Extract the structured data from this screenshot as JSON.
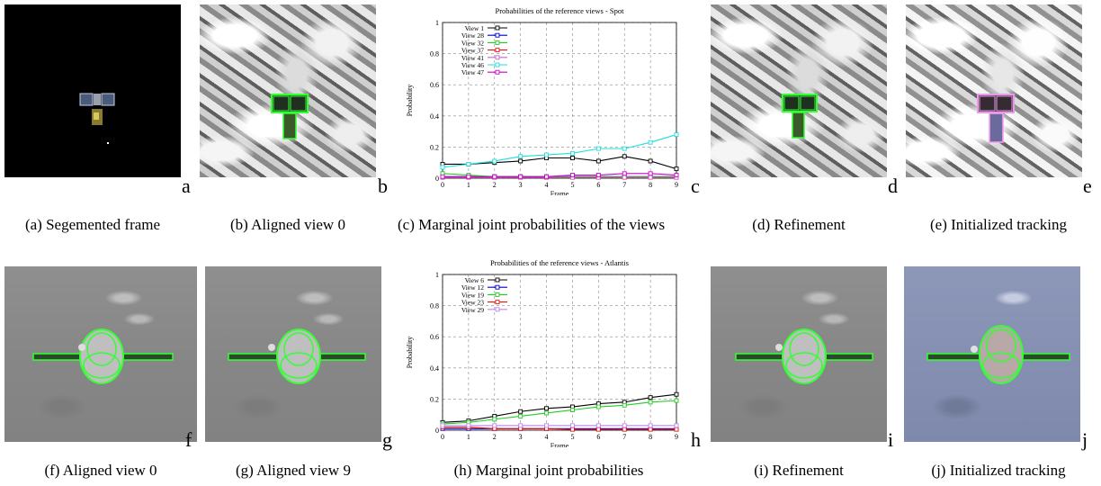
{
  "captions": {
    "a": "(a) Segemented frame",
    "b": "(b) Aligned view 0",
    "c": "(c) Marginal joint probabilities of the views",
    "d": "(d) Refinement",
    "e": "(e) Initialized tracking",
    "f": "(f) Aligned view 0",
    "g": "(g) Aligned view 9",
    "h": "(h) Marginal joint probabilities",
    "i": "(i) Refinement",
    "j": "(j) Initialized tracking"
  },
  "panel_letters": {
    "a": "a",
    "b": "b",
    "c": "c",
    "d": "d",
    "e": "e",
    "f": "f",
    "g": "g",
    "h": "h",
    "i": "i",
    "j": "j"
  },
  "chart_data": [
    {
      "type": "line",
      "title": "Probabilities of the reference views - Spot",
      "xlabel": "Frame",
      "ylabel": "Probability",
      "xlim": [
        0,
        9
      ],
      "ylim": [
        0,
        1
      ],
      "xticks": [
        "0",
        "1",
        "2",
        "3",
        "4",
        "5",
        "6",
        "7",
        "8",
        "9"
      ],
      "yticks": [
        "0",
        "0.2",
        "0.4",
        "0.6",
        "0.8",
        "1"
      ],
      "grid": true,
      "legend_position": "top-left",
      "x": [
        0,
        1,
        2,
        3,
        4,
        5,
        6,
        7,
        8,
        9
      ],
      "series": [
        {
          "name": "View 1",
          "color": "#000000",
          "marker": "square-open",
          "values": [
            0.09,
            0.09,
            0.1,
            0.11,
            0.13,
            0.13,
            0.11,
            0.14,
            0.11,
            0.06
          ]
        },
        {
          "name": "View 28",
          "color": "#0000cc",
          "marker": "square-open",
          "values": [
            0.01,
            0.01,
            0.01,
            0.01,
            0.01,
            0.01,
            0.01,
            0.01,
            0.01,
            0.01
          ]
        },
        {
          "name": "View 32",
          "color": "#22cc22",
          "marker": "square-open",
          "values": [
            0.03,
            0.02,
            0.01,
            0.01,
            0.01,
            0.01,
            0.01,
            0.01,
            0.01,
            0.01
          ]
        },
        {
          "name": "View 37",
          "color": "#ee1111",
          "marker": "square-open",
          "values": [
            0.005,
            0.005,
            0.005,
            0.005,
            0.005,
            0.005,
            0.005,
            0.005,
            0.005,
            0.005
          ]
        },
        {
          "name": "View 41",
          "color": "#cc66cc",
          "marker": "square-open",
          "values": [
            0.005,
            0.005,
            0.005,
            0.005,
            0.005,
            0.005,
            0.005,
            0.005,
            0.005,
            0.005
          ]
        },
        {
          "name": "View 46",
          "color": "#22dddd",
          "marker": "square-open",
          "values": [
            0.07,
            0.09,
            0.11,
            0.14,
            0.15,
            0.16,
            0.19,
            0.19,
            0.23,
            0.28
          ]
        },
        {
          "name": "View 47",
          "color": "#cc00cc",
          "marker": "square-open",
          "values": [
            0.01,
            0.01,
            0.01,
            0.01,
            0.01,
            0.02,
            0.02,
            0.03,
            0.03,
            0.02
          ]
        }
      ]
    },
    {
      "type": "line",
      "title": "Probabilities of the reference views - Atlantis",
      "xlabel": "Frame",
      "ylabel": "Probability",
      "xlim": [
        0,
        9
      ],
      "ylim": [
        0,
        1
      ],
      "xticks": [
        "0",
        "1",
        "2",
        "3",
        "4",
        "5",
        "6",
        "7",
        "8",
        "9"
      ],
      "yticks": [
        "0",
        "0.2",
        "0.4",
        "0.6",
        "0.8",
        "1"
      ],
      "grid": true,
      "legend_position": "top-left",
      "x": [
        0,
        1,
        2,
        3,
        4,
        5,
        6,
        7,
        8,
        9
      ],
      "series": [
        {
          "name": "View 6",
          "color": "#000000",
          "marker": "square-open",
          "values": [
            0.05,
            0.06,
            0.09,
            0.12,
            0.14,
            0.15,
            0.17,
            0.18,
            0.21,
            0.23
          ]
        },
        {
          "name": "View 12",
          "color": "#0000cc",
          "marker": "square-open",
          "values": [
            0.01,
            0.01,
            0.01,
            0.01,
            0.01,
            0.01,
            0.01,
            0.01,
            0.01,
            0.01
          ]
        },
        {
          "name": "View 19",
          "color": "#22cc22",
          "marker": "square-open",
          "values": [
            0.04,
            0.05,
            0.07,
            0.09,
            0.11,
            0.13,
            0.15,
            0.16,
            0.18,
            0.19
          ]
        },
        {
          "name": "View 23",
          "color": "#ee1111",
          "marker": "square-open",
          "values": [
            0.02,
            0.02,
            0.01,
            0.01,
            0.01,
            0.005,
            0.005,
            0.005,
            0.005,
            0.005
          ]
        },
        {
          "name": "View 29",
          "color": "#bb88ee",
          "marker": "square-open",
          "values": [
            0.03,
            0.03,
            0.03,
            0.03,
            0.03,
            0.03,
            0.03,
            0.03,
            0.03,
            0.03
          ]
        }
      ]
    }
  ]
}
